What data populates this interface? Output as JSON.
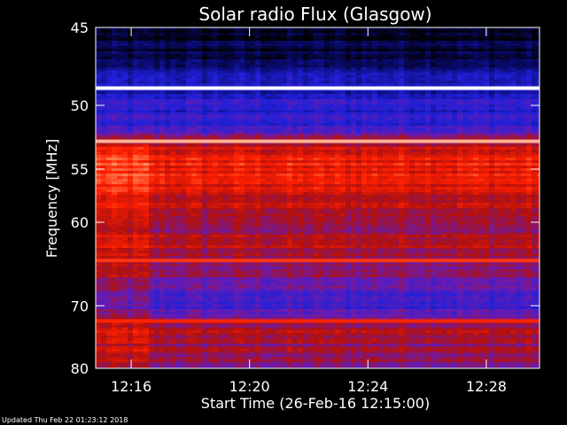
{
  "chart_data": {
    "type": "heatmap",
    "title": "Solar radio Flux (Glasgow)",
    "xlabel": "Start Time (26-Feb-16 12:15:00)",
    "ylabel": "Frequency [MHz]",
    "x_range_minutes": [
      0,
      15
    ],
    "x_ticks": [
      {
        "minute": 1.2,
        "label": "12:16"
      },
      {
        "minute": 5.2,
        "label": "12:20"
      },
      {
        "minute": 9.2,
        "label": "12:24"
      },
      {
        "minute": 13.2,
        "label": "12:28"
      }
    ],
    "y_range_mhz": [
      45,
      80
    ],
    "y_scale": "reciprocal",
    "y_ticks": [
      45,
      50,
      55,
      60,
      70,
      80
    ],
    "colormap": [
      "#000000",
      "#0a0a6e",
      "#2020d8",
      "#6a1bb0",
      "#b01010",
      "#ff2000",
      "#ff9060",
      "#ffffff"
    ],
    "background_level_by_freq": [
      {
        "mhz": 45.0,
        "level": 0.02
      },
      {
        "mhz": 46.5,
        "level": 0.1
      },
      {
        "mhz": 48.0,
        "level": 0.22
      },
      {
        "mhz": 50.0,
        "level": 0.28
      },
      {
        "mhz": 51.5,
        "level": 0.33
      },
      {
        "mhz": 53.0,
        "level": 0.6
      },
      {
        "mhz": 55.0,
        "level": 0.7
      },
      {
        "mhz": 57.0,
        "level": 0.63
      },
      {
        "mhz": 60.0,
        "level": 0.55
      },
      {
        "mhz": 62.5,
        "level": 0.56
      },
      {
        "mhz": 65.0,
        "level": 0.52
      },
      {
        "mhz": 67.0,
        "level": 0.42
      },
      {
        "mhz": 68.5,
        "level": 0.36
      },
      {
        "mhz": 71.0,
        "level": 0.38
      },
      {
        "mhz": 73.0,
        "level": 0.55
      },
      {
        "mhz": 76.0,
        "level": 0.53
      },
      {
        "mhz": 80.0,
        "level": 0.48
      }
    ],
    "bright_lines_mhz": [
      {
        "mhz": 48.8,
        "level": 1.0
      },
      {
        "mhz": 52.7,
        "level": 0.9
      },
      {
        "mhz": 64.2,
        "level": 0.74
      },
      {
        "mhz": 72.2,
        "level": 0.72
      }
    ],
    "enhanced_time_segment_minutes": [
      0,
      1.7
    ]
  },
  "footer": {
    "updated": "Updated Thu Feb 22 01:23:12 2018"
  }
}
